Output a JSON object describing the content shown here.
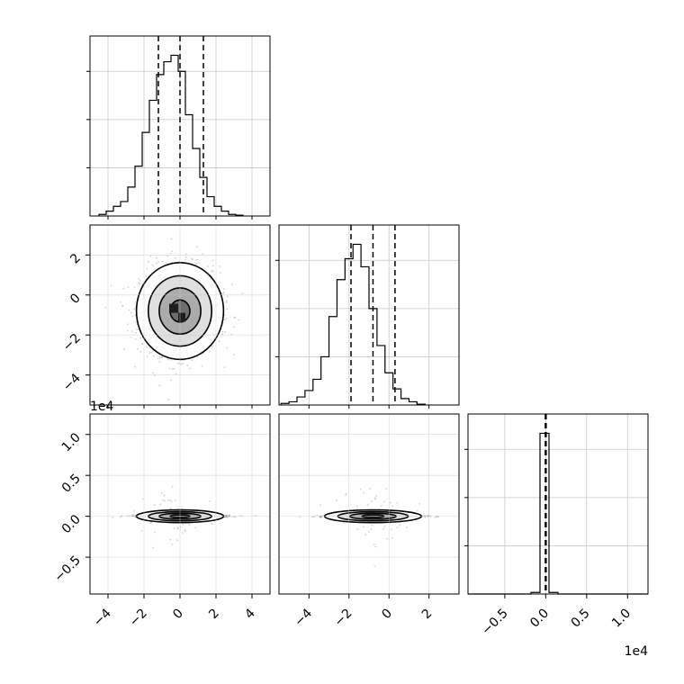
{
  "chart_data": {
    "type": "corner",
    "grid": true,
    "params": [
      {
        "index": 0,
        "range": [
          -5,
          5
        ],
        "ticks": [
          -4,
          -2,
          0,
          2,
          4
        ],
        "tick_labels": [
          "−4",
          "−2",
          "0",
          "2",
          "4"
        ],
        "quantiles": [
          -1.2,
          0.0,
          1.3
        ]
      },
      {
        "index": 1,
        "range": [
          -5.5,
          3.5
        ],
        "ticks": [
          -4,
          -2,
          0,
          2
        ],
        "tick_labels": [
          "−4",
          "−2",
          "0",
          "2"
        ],
        "quantiles": [
          -1.9,
          -0.8,
          0.3
        ]
      },
      {
        "index": 2,
        "range": [
          -0.95,
          1.25
        ],
        "ticks": [
          -0.5,
          0.0,
          0.5,
          1.0
        ],
        "tick_labels": [
          "−0.5",
          "0.0",
          "0.5",
          "1.0"
        ],
        "quantiles": [
          -0.005,
          0.0,
          0.005
        ],
        "offset_label": "1e4"
      }
    ],
    "histograms": [
      {
        "param": 0,
        "bin_start": -4.5,
        "bin_width": 0.4,
        "heights": [
          0.01,
          0.03,
          0.06,
          0.09,
          0.18,
          0.31,
          0.52,
          0.72,
          0.88,
          0.96,
          1.0,
          0.9,
          0.63,
          0.42,
          0.24,
          0.12,
          0.06,
          0.03,
          0.01,
          0.005
        ]
      },
      {
        "param": 1,
        "bin_start": -5.4,
        "bin_width": 0.4,
        "heights": [
          0.01,
          0.02,
          0.05,
          0.09,
          0.16,
          0.3,
          0.55,
          0.78,
          0.91,
          1.0,
          0.86,
          0.6,
          0.37,
          0.2,
          0.1,
          0.04,
          0.02,
          0.005
        ]
      },
      {
        "param": 2,
        "bin_start": -0.95,
        "bin_width": 0.11,
        "heights": [
          0.0,
          0.0,
          0.0,
          0.0,
          0.0,
          0.0,
          0.0,
          0.01,
          1.0,
          0.01,
          0.0,
          0.0,
          0.0,
          0.0,
          0.0,
          0.0,
          0.0,
          0.0,
          0.0,
          0.0
        ]
      }
    ],
    "scatter_panels": [
      {
        "x_param": 0,
        "y_param": 1,
        "center": [
          0.0,
          -0.8
        ],
        "spread": [
          1.1,
          1.1
        ]
      },
      {
        "x_param": 0,
        "y_param": 2,
        "center": [
          0.0,
          0.0
        ],
        "spread": [
          1.1,
          0.006
        ]
      },
      {
        "x_param": 1,
        "y_param": 2,
        "center": [
          -0.8,
          0.0
        ],
        "spread": [
          1.1,
          0.006
        ]
      }
    ]
  }
}
